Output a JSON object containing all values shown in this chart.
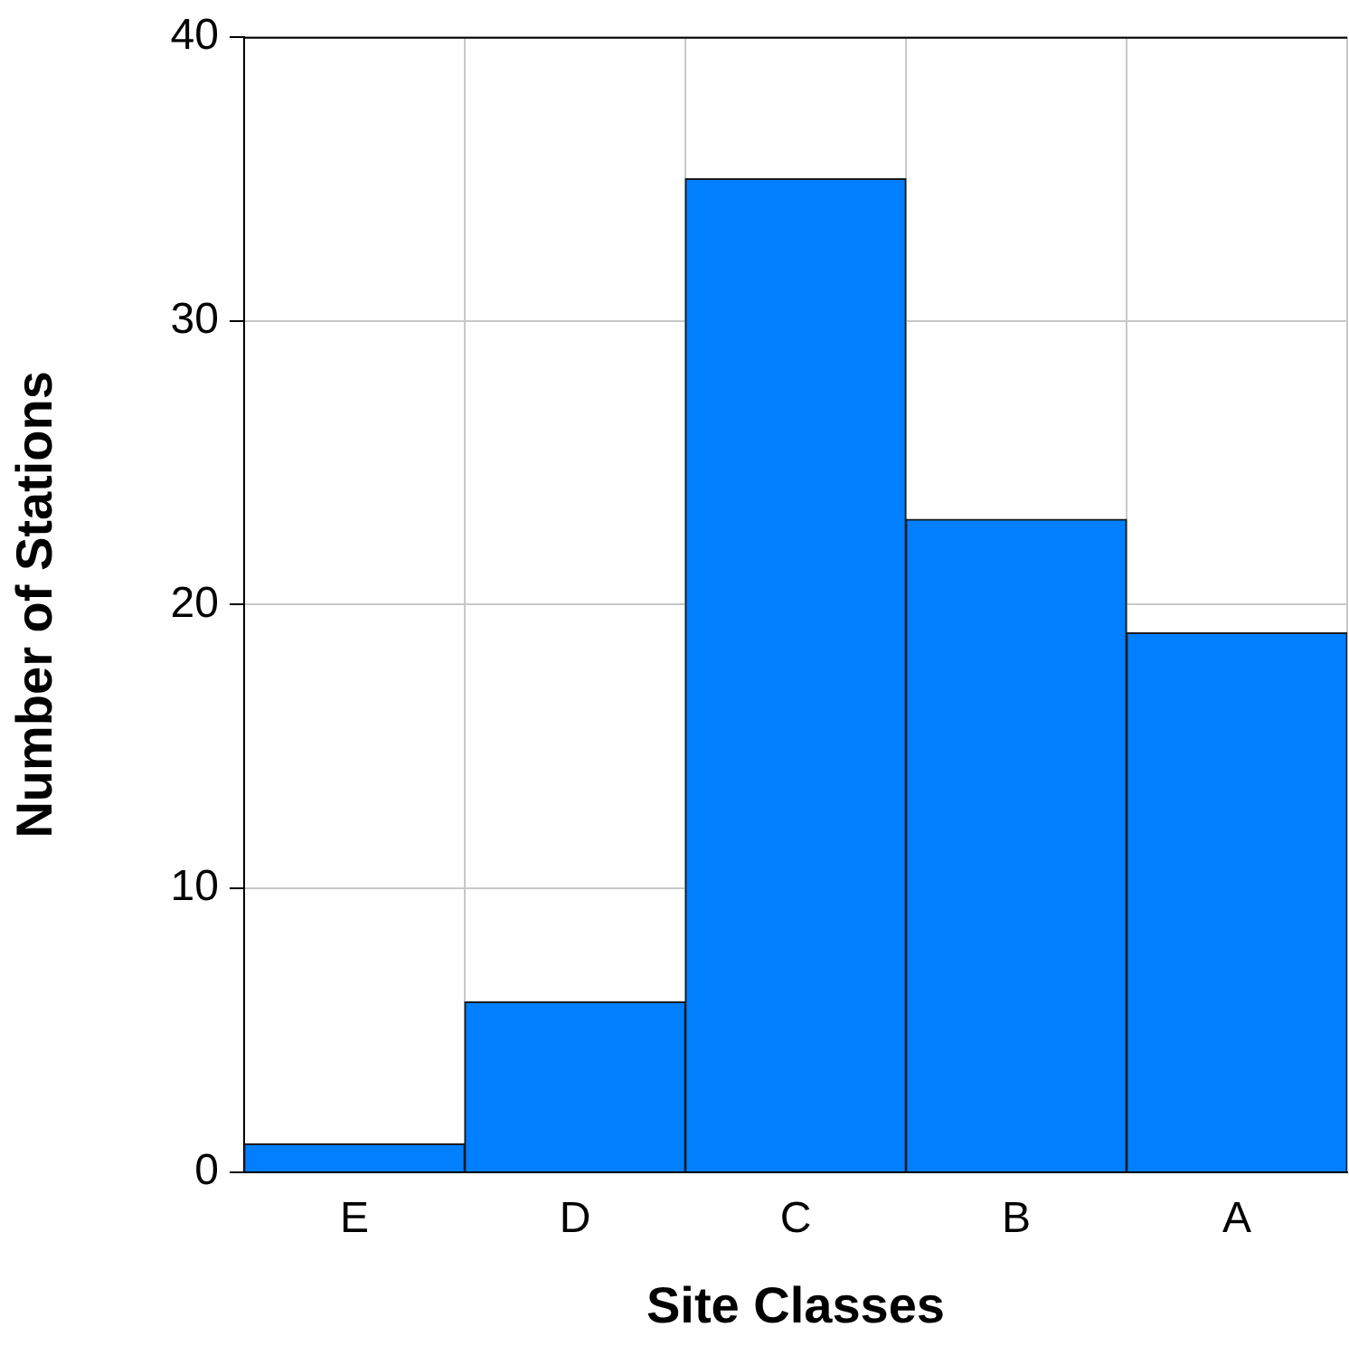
{
  "chart_data": {
    "type": "bar",
    "xlabel": "Site Classes",
    "ylabel": "Number of Stations",
    "categories": [
      "E",
      "D",
      "C",
      "B",
      "A"
    ],
    "values": [
      1,
      6,
      35,
      23,
      19
    ],
    "color": "#0080ff",
    "ylim": [
      0,
      40
    ],
    "yticks": [
      0,
      10,
      20,
      30,
      40
    ],
    "grid": true
  }
}
